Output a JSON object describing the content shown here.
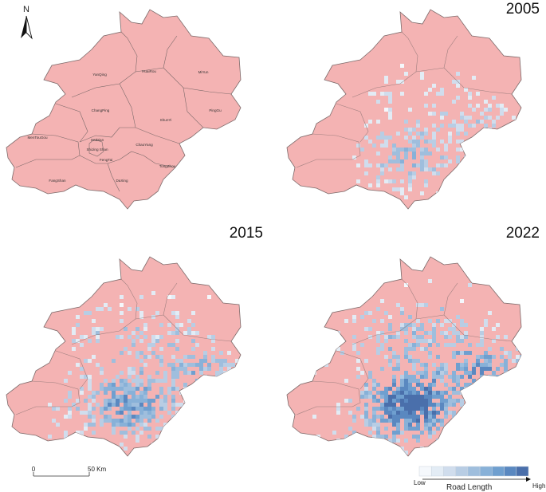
{
  "panels": [
    {
      "id": "base",
      "year": "",
      "density": 0
    },
    {
      "id": "p2005",
      "year": "2005",
      "density": 1
    },
    {
      "id": "p2015",
      "year": "2015",
      "density": 2
    },
    {
      "id": "p2022",
      "year": "2022",
      "density": 3
    }
  ],
  "districts": [
    "YanQing",
    "HuaiRou",
    "MiYun",
    "ChangPing",
    "PingGu",
    "ShunYi",
    "MenTouGou",
    "HaiDian",
    "ChaoYang",
    "ShiJing Shan",
    "FengTai",
    "TongZhou",
    "FangShan",
    "DaXing"
  ],
  "north_arrow": "N",
  "scale_bar": {
    "start": "0",
    "end": "50 Km"
  },
  "legend": {
    "low": "Low",
    "high": "High",
    "title": "Road Length",
    "classes": 9
  },
  "colors": {
    "land": "#f4b3b3",
    "border": "#7c6a6a",
    "ramp": [
      "#f5f8fc",
      "#e3ecf5",
      "#d0dded",
      "#b8cde4",
      "#9fbedd",
      "#88b1d8",
      "#6f9fcf",
      "#5a88c0",
      "#4a6fab"
    ]
  }
}
